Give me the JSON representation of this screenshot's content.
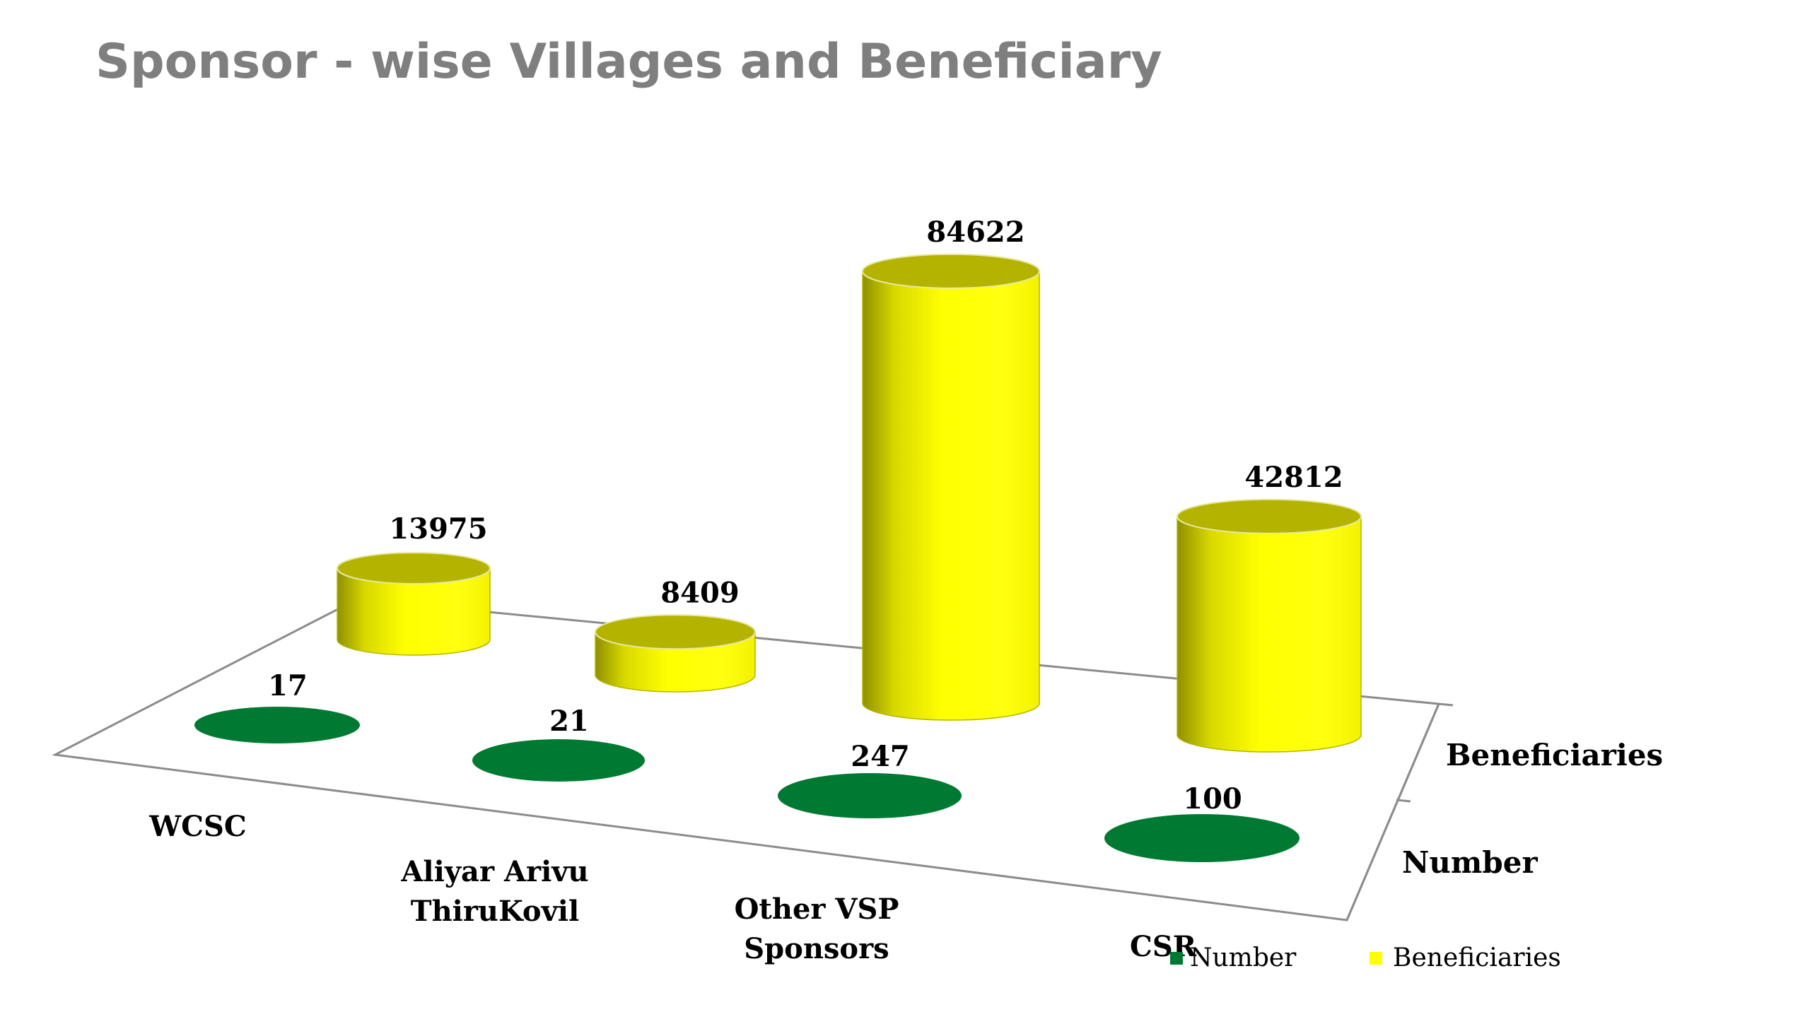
{
  "chart_data": {
    "type": "bar",
    "title": "Sponsor - wise Villages and Beneficiary",
    "categories": [
      "WCSC",
      "Aliyar Arivu ThiruKovil",
      "Other VSP Sponsors",
      "CSR"
    ],
    "series": [
      {
        "name": "Number",
        "values": [
          17,
          21,
          247,
          100
        ],
        "color": "#007a33"
      },
      {
        "name": "Beneficiaries",
        "values": [
          13975,
          8409,
          84622,
          42812
        ],
        "color": "#ffff00"
      }
    ],
    "legend": [
      "Number",
      "Beneficiaries"
    ],
    "legend_placement": "bottom-right",
    "grid": false
  }
}
